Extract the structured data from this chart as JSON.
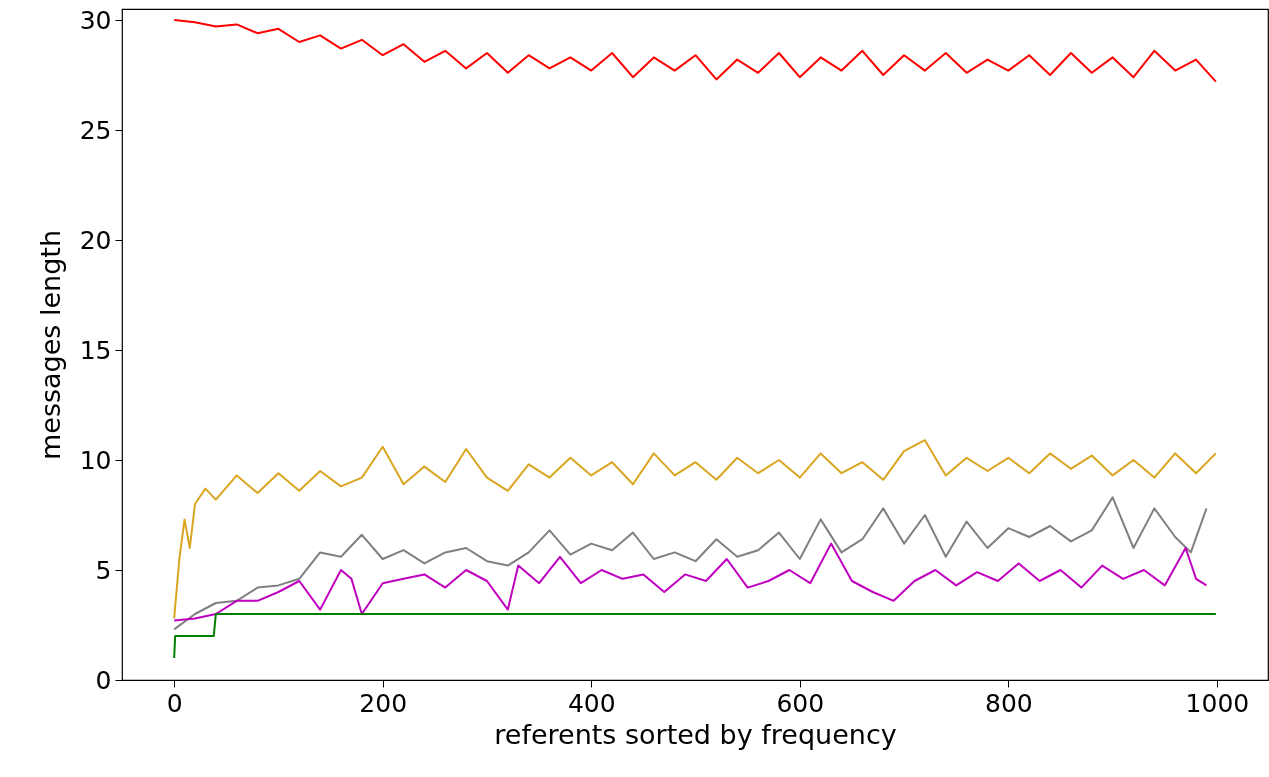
{
  "chart_data": {
    "type": "line",
    "xlabel": "referents sorted by frequency",
    "ylabel": "messages length",
    "xlim": [
      -50,
      1049
    ],
    "ylim": [
      0,
      30.5
    ],
    "xticks": [
      0,
      200,
      400,
      600,
      800,
      1000
    ],
    "yticks": [
      0,
      5,
      10,
      15,
      20,
      25,
      30
    ],
    "grid": false,
    "series": [
      {
        "color": "#ff0000",
        "x": [
          0,
          20,
          40,
          60,
          80,
          100,
          120,
          140,
          160,
          180,
          200,
          220,
          240,
          260,
          280,
          300,
          320,
          340,
          360,
          380,
          400,
          420,
          440,
          460,
          480,
          500,
          520,
          540,
          560,
          580,
          600,
          620,
          640,
          660,
          680,
          700,
          720,
          740,
          760,
          780,
          800,
          820,
          840,
          860,
          880,
          900,
          920,
          940,
          960,
          980,
          999
        ],
        "values": [
          30.0,
          29.9,
          29.7,
          29.8,
          29.4,
          29.6,
          29.0,
          29.3,
          28.7,
          29.1,
          28.4,
          28.9,
          28.1,
          28.6,
          27.8,
          28.5,
          27.6,
          28.4,
          27.8,
          28.3,
          27.7,
          28.5,
          27.4,
          28.3,
          27.7,
          28.4,
          27.3,
          28.2,
          27.6,
          28.5,
          27.4,
          28.3,
          27.7,
          28.6,
          27.5,
          28.4,
          27.7,
          28.5,
          27.6,
          28.2,
          27.7,
          28.4,
          27.5,
          28.5,
          27.6,
          28.3,
          27.4,
          28.6,
          27.7,
          28.2,
          27.2
        ]
      },
      {
        "color": "#daa520",
        "x": [
          0,
          5,
          10,
          15,
          20,
          30,
          40,
          60,
          80,
          100,
          120,
          140,
          160,
          180,
          200,
          220,
          240,
          260,
          280,
          300,
          320,
          340,
          360,
          380,
          400,
          420,
          440,
          460,
          480,
          500,
          520,
          540,
          560,
          580,
          600,
          620,
          640,
          660,
          680,
          700,
          720,
          740,
          760,
          780,
          800,
          820,
          840,
          860,
          880,
          900,
          920,
          940,
          960,
          980,
          999
        ],
        "values": [
          2.8,
          5.5,
          7.3,
          6.0,
          8.0,
          8.7,
          8.2,
          9.3,
          8.5,
          9.4,
          8.6,
          9.5,
          8.8,
          9.2,
          10.6,
          8.9,
          9.7,
          9.0,
          10.5,
          9.2,
          8.6,
          9.8,
          9.2,
          10.1,
          9.3,
          9.9,
          8.9,
          10.3,
          9.3,
          9.9,
          9.1,
          10.1,
          9.4,
          10.0,
          9.2,
          10.3,
          9.4,
          9.9,
          9.1,
          10.4,
          10.9,
          9.3,
          10.1,
          9.5,
          10.1,
          9.4,
          10.3,
          9.6,
          10.2,
          9.3,
          10.0,
          9.2,
          10.3,
          9.4,
          10.3
        ]
      },
      {
        "color": "#808080",
        "x": [
          0,
          20,
          40,
          60,
          80,
          100,
          120,
          140,
          160,
          180,
          200,
          220,
          240,
          260,
          280,
          300,
          320,
          340,
          360,
          380,
          400,
          420,
          440,
          460,
          480,
          500,
          520,
          540,
          560,
          580,
          600,
          620,
          640,
          660,
          680,
          700,
          720,
          740,
          760,
          780,
          800,
          820,
          840,
          860,
          880,
          900,
          920,
          940,
          960,
          975,
          990
        ],
        "values": [
          2.3,
          3.0,
          3.5,
          3.6,
          4.2,
          4.3,
          4.6,
          5.8,
          5.6,
          6.6,
          5.5,
          5.9,
          5.3,
          5.8,
          6.0,
          5.4,
          5.2,
          5.8,
          6.8,
          5.7,
          6.2,
          5.9,
          6.7,
          5.5,
          5.8,
          5.4,
          6.4,
          5.6,
          5.9,
          6.7,
          5.5,
          7.3,
          5.8,
          6.4,
          7.8,
          6.2,
          7.5,
          5.6,
          7.2,
          6.0,
          6.9,
          6.5,
          7.0,
          6.3,
          6.8,
          8.3,
          6.0,
          7.8,
          6.5,
          5.8,
          7.8
        ]
      },
      {
        "color": "#bf00bf",
        "x": [
          0,
          20,
          40,
          60,
          80,
          100,
          120,
          140,
          160,
          170,
          180,
          200,
          220,
          240,
          260,
          280,
          300,
          320,
          330,
          350,
          370,
          390,
          410,
          430,
          450,
          470,
          490,
          510,
          530,
          550,
          570,
          590,
          610,
          630,
          650,
          670,
          690,
          710,
          730,
          750,
          770,
          790,
          810,
          830,
          850,
          870,
          890,
          910,
          930,
          950,
          970,
          980,
          990
        ],
        "values": [
          2.7,
          2.8,
          3.0,
          3.6,
          3.6,
          4.0,
          4.5,
          3.2,
          5.0,
          4.6,
          3.0,
          4.4,
          4.6,
          4.8,
          4.2,
          5.0,
          4.5,
          3.2,
          5.2,
          4.4,
          5.6,
          4.4,
          5.0,
          4.6,
          4.8,
          4.0,
          4.8,
          4.5,
          5.5,
          4.2,
          4.5,
          5.0,
          4.4,
          6.2,
          4.5,
          4.0,
          3.6,
          4.5,
          5.0,
          4.3,
          4.9,
          4.5,
          5.3,
          4.5,
          5.0,
          4.2,
          5.2,
          4.6,
          5.0,
          4.3,
          6.0,
          4.6,
          4.3
        ]
      },
      {
        "color": "#008000",
        "x": [
          0,
          1,
          38,
          40,
          999
        ],
        "values": [
          1,
          2,
          2,
          3,
          3
        ]
      }
    ]
  }
}
